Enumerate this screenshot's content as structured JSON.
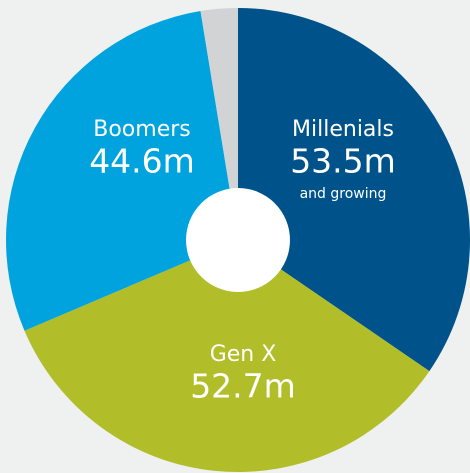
{
  "chart_data": {
    "type": "donut",
    "categories": [
      "Millenials",
      "Gen X",
      "Boomers",
      null
    ],
    "values": [
      53.5,
      52.7,
      44.6,
      4
    ],
    "value_labels": [
      "53.5m",
      "52.7m",
      "44.6m",
      null
    ],
    "colors": [
      "#00538a",
      "#b1be2a",
      "#00a3de",
      "#d1d3d4"
    ],
    "annotation": "and growing"
  }
}
